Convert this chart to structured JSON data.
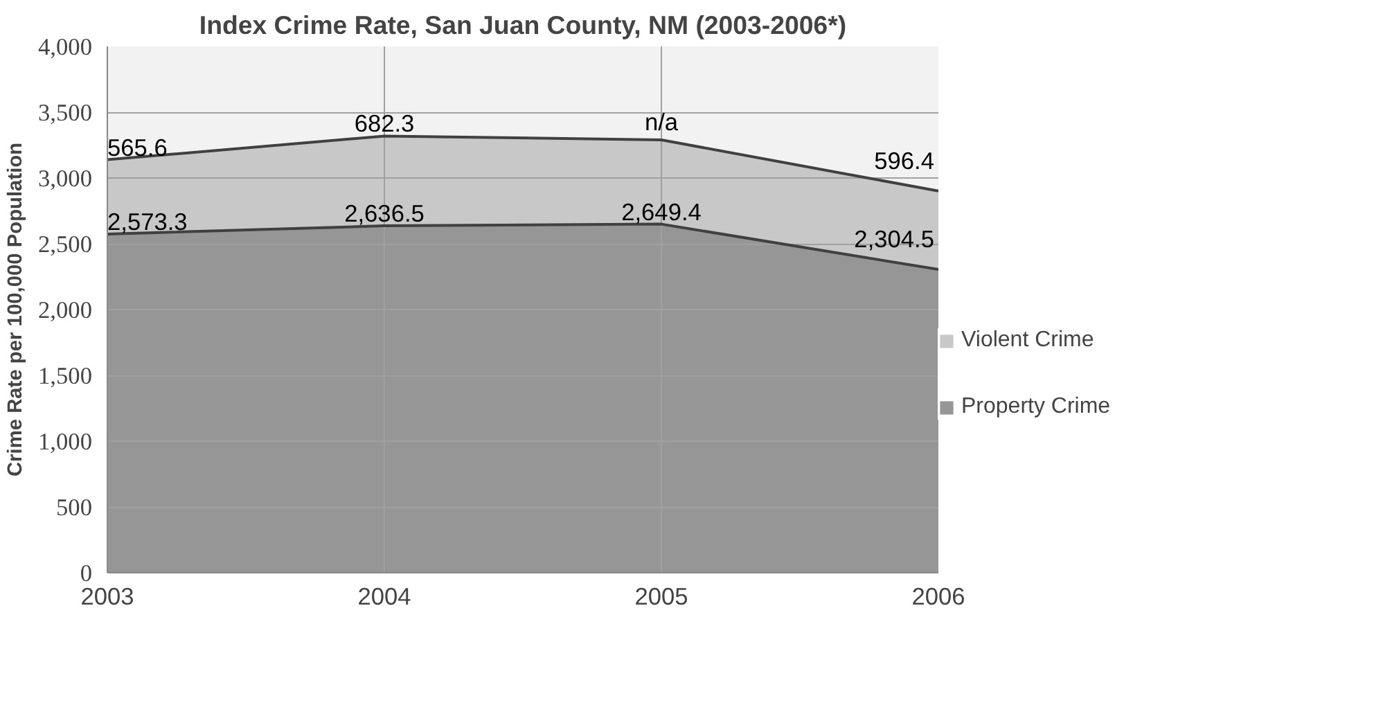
{
  "chart_data": {
    "type": "area",
    "stacked": true,
    "title": "Index Crime Rate, San Juan County, NM (2003-2006*)",
    "ylabel": "Crime Rate per 100,000 Population",
    "x": [
      2003,
      2004,
      2005,
      2006
    ],
    "xlim": [
      2003,
      2006
    ],
    "xticks": [
      2003,
      2004,
      2005,
      2006
    ],
    "ylim": [
      0,
      4000
    ],
    "yticks": [
      {
        "value": 0,
        "label": "0"
      },
      {
        "value": 500,
        "label": "500"
      },
      {
        "value": 1000,
        "label": "1,000"
      },
      {
        "value": 1500,
        "label": "1,500"
      },
      {
        "value": 2000,
        "label": "2,000"
      },
      {
        "value": 2500,
        "label": "2,500"
      },
      {
        "value": 3000,
        "label": "3,000"
      },
      {
        "value": 3500,
        "label": "3,500"
      },
      {
        "value": 4000,
        "label": "4,000"
      }
    ],
    "series": [
      {
        "name": "Property Crime",
        "color": "#969696",
        "values": [
          2573.3,
          2636.5,
          2649.4,
          2304.5
        ],
        "value_labels": [
          "2,573.3",
          "2,636.5",
          "2,649.4",
          "2,304.5"
        ]
      },
      {
        "name": "Violent Crime",
        "color": "#c8c8c8",
        "values": [
          565.6,
          682.3,
          640,
          596.4
        ],
        "value_labels": [
          "565.6",
          "682.3",
          "n/a",
          "596.4"
        ]
      }
    ],
    "grid": true,
    "legend": "right"
  }
}
